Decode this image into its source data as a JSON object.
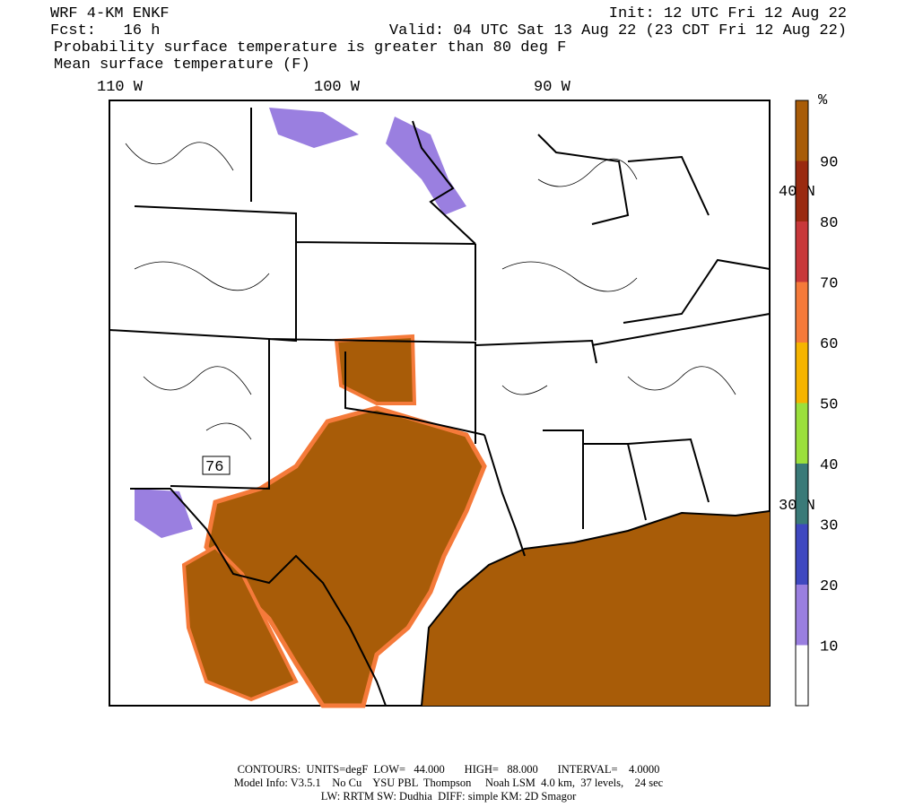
{
  "header": {
    "model": "WRF 4-KM ENKF",
    "forecast": "Fcst:   16 h",
    "init": "Init: 12 UTC Fri 12 Aug 22",
    "valid": "Valid: 04 UTC Sat 13 Aug 22 (23 CDT Fri 12 Aug 22)",
    "field1": "Probability surface temperature is greater than 80 deg F",
    "field2": "Mean surface temperature (F)"
  },
  "map": {
    "lon_labels": [
      "110 W",
      "100 W",
      "90 W"
    ],
    "lat_labels": [
      "40 N",
      "30 N"
    ],
    "contour_label": "76"
  },
  "colorbar": {
    "unit": "%",
    "levels": [
      10,
      20,
      30,
      40,
      50,
      60,
      70,
      80,
      90
    ],
    "colors": [
      "#ffffff",
      "#9a7fe0",
      "#3f48c0",
      "#3a7a78",
      "#9be03c",
      "#f5b400",
      "#f57a3a",
      "#c8383a",
      "#9a2a10",
      "#a85c08"
    ]
  },
  "footer": {
    "line1": "CONTOURS:  UNITS=degF  LOW=   44.000       HIGH=   88.000       INTERVAL=    4.0000",
    "line2": "Model Info: V3.5.1    No Cu    YSU PBL  Thompson     Noah LSM  4.0 km,  37 levels,    24 sec",
    "line3": "LW: RRTM SW: Dudhia  DIFF: simple KM: 2D Smagor"
  }
}
